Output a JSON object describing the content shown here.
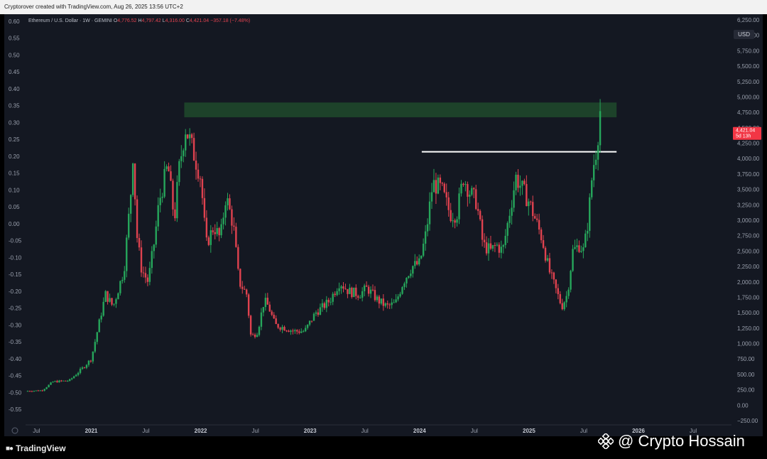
{
  "header": {
    "credit": "Cryptorover created with TradingView.com, Aug 26, 2025 13:56 UTC+2"
  },
  "chart_header": {
    "symbol": "Ethereum / U.S. Dollar · 1W · GEMINI",
    "open_label": "O",
    "open": "4,776.52",
    "high_label": "H",
    "high": "4,797.42",
    "low_label": "L",
    "low": "4,316.00",
    "close_label": "C",
    "close": "4,421.04",
    "change": "−357.18 (−7.48%)"
  },
  "price_badge": {
    "price": "4,421.04",
    "countdown": "5d 13h",
    "color": "#f23645"
  },
  "currency": "USD",
  "branding": {
    "tradingview": "TradingView",
    "watermark": "@ Crypto Hossain"
  },
  "colors": {
    "up": "#26a65b",
    "down": "#e0424f",
    "background": "#141822",
    "zone": "#1f4a2c",
    "level": "#ffffff"
  },
  "chart_data": {
    "type": "candlestick",
    "price_axis_right": {
      "range": [
        -250,
        6250
      ],
      "ticks": [
        "6,250.00",
        "6,000.00",
        "5,750.00",
        "5,500.00",
        "5,250.00",
        "5,000.00",
        "4,750.00",
        "4,500.00",
        "4,250.00",
        "4,000.00",
        "3,750.00",
        "3,500.00",
        "3,250.00",
        "3,000.00",
        "2,750.00",
        "2,500.00",
        "2,250.00",
        "2,000.00",
        "1,750.00",
        "1,500.00",
        "1,250.00",
        "1,000.00",
        "750.00",
        "500.00",
        "250.00",
        "0.00",
        "−250.00"
      ]
    },
    "left_axis": {
      "ticks": [
        "0.60",
        "0.55",
        "0.50",
        "0.45",
        "0.40",
        "0.35",
        "0.30",
        "0.25",
        "0.20",
        "0.15",
        "0.10",
        "0.05",
        "0.00",
        "-0.05",
        "-0.10",
        "-0.15",
        "-0.20",
        "-0.25",
        "-0.30",
        "-0.35",
        "-0.40",
        "-0.45",
        "-0.50",
        "-0.55"
      ]
    },
    "time_axis": {
      "labels": [
        "Jul",
        "2021",
        "Jul",
        "2022",
        "Jul",
        "2023",
        "Jul",
        "2024",
        "Jul",
        "2025",
        "Jul",
        "2026",
        "Jul"
      ],
      "label_dates": [
        2020.5,
        2021.0,
        2021.5,
        2022.0,
        2022.5,
        2023.0,
        2023.5,
        2024.0,
        2024.5,
        2025.0,
        2025.5,
        2026.0,
        2026.5
      ],
      "range": [
        2020.4,
        2026.85
      ]
    },
    "resistance_zone": {
      "t_start": 2021.85,
      "t_end": 2025.8,
      "price_low": 4670,
      "price_high": 4910
    },
    "support_level": {
      "t_start": 2024.02,
      "t_end": 2025.8,
      "price": 4110
    },
    "weekly_close_path": [
      [
        2020.4,
        230
      ],
      [
        2020.55,
        240
      ],
      [
        2020.65,
        380
      ],
      [
        2020.8,
        400
      ],
      [
        2020.92,
        600
      ],
      [
        2021.0,
        750
      ],
      [
        2021.08,
        1400
      ],
      [
        2021.13,
        1800
      ],
      [
        2021.2,
        1600
      ],
      [
        2021.25,
        1900
      ],
      [
        2021.3,
        2200
      ],
      [
        2021.36,
        3400
      ],
      [
        2021.38,
        4100
      ],
      [
        2021.42,
        2700
      ],
      [
        2021.46,
        2200
      ],
      [
        2021.52,
        2000
      ],
      [
        2021.58,
        2700
      ],
      [
        2021.62,
        3300
      ],
      [
        2021.7,
        3900
      ],
      [
        2021.76,
        3000
      ],
      [
        2021.8,
        3800
      ],
      [
        2021.86,
        4500
      ],
      [
        2021.9,
        4300
      ],
      [
        2021.95,
        4000
      ],
      [
        2022.0,
        3700
      ],
      [
        2022.05,
        2600
      ],
      [
        2022.12,
        2900
      ],
      [
        2022.18,
        2700
      ],
      [
        2022.23,
        3400
      ],
      [
        2022.3,
        2900
      ],
      [
        2022.35,
        2000
      ],
      [
        2022.42,
        1800
      ],
      [
        2022.46,
        1100
      ],
      [
        2022.52,
        1200
      ],
      [
        2022.58,
        1700
      ],
      [
        2022.62,
        1600
      ],
      [
        2022.68,
        1300
      ],
      [
        2022.78,
        1250
      ],
      [
        2022.85,
        1200
      ],
      [
        2022.95,
        1200
      ],
      [
        2023.05,
        1500
      ],
      [
        2023.12,
        1600
      ],
      [
        2023.18,
        1700
      ],
      [
        2023.27,
        2000
      ],
      [
        2023.35,
        1850
      ],
      [
        2023.45,
        1800
      ],
      [
        2023.52,
        1900
      ],
      [
        2023.62,
        1700
      ],
      [
        2023.7,
        1600
      ],
      [
        2023.78,
        1650
      ],
      [
        2023.85,
        2000
      ],
      [
        2023.93,
        2250
      ],
      [
        2024.0,
        2300
      ],
      [
        2024.06,
        2800
      ],
      [
        2024.12,
        3600
      ],
      [
        2024.2,
        3500
      ],
      [
        2024.28,
        3100
      ],
      [
        2024.34,
        3100
      ],
      [
        2024.4,
        3700
      ],
      [
        2024.46,
        3450
      ],
      [
        2024.52,
        3300
      ],
      [
        2024.58,
        2600
      ],
      [
        2024.65,
        2500
      ],
      [
        2024.7,
        2600
      ],
      [
        2024.76,
        2500
      ],
      [
        2024.82,
        3100
      ],
      [
        2024.88,
        3700
      ],
      [
        2024.94,
        3500
      ],
      [
        2025.0,
        3300
      ],
      [
        2025.06,
        3000
      ],
      [
        2025.12,
        2700
      ],
      [
        2025.18,
        2200
      ],
      [
        2025.24,
        1900
      ],
      [
        2025.3,
        1600
      ],
      [
        2025.35,
        1800
      ],
      [
        2025.4,
        2500
      ],
      [
        2025.46,
        2600
      ],
      [
        2025.5,
        2500
      ],
      [
        2025.54,
        3000
      ],
      [
        2025.58,
        3800
      ],
      [
        2025.62,
        4200
      ],
      [
        2025.65,
        4780
      ],
      [
        2025.66,
        4421
      ]
    ]
  }
}
